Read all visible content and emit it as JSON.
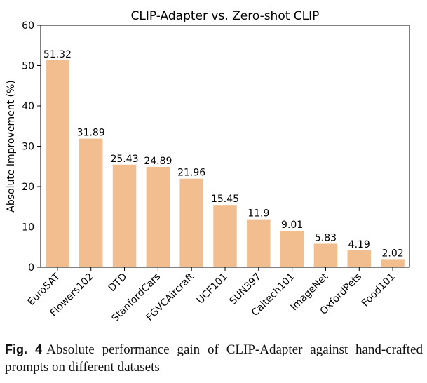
{
  "chart_data": {
    "type": "bar",
    "title": "CLIP-Adapter vs. Zero-shot CLIP",
    "xlabel": "",
    "ylabel": "Absolute Improvement (%)",
    "ylim": [
      0,
      60
    ],
    "yticks": [
      0,
      10,
      20,
      30,
      40,
      50,
      60
    ],
    "categories": [
      "EuroSAT",
      "Flowers102",
      "DTD",
      "StanfordCars",
      "FGVCAircraft",
      "UCF101",
      "SUN397",
      "Caltech101",
      "ImageNet",
      "OxfordPets",
      "Food101"
    ],
    "values": [
      51.32,
      31.89,
      25.43,
      24.89,
      21.96,
      15.45,
      11.9,
      9.01,
      5.83,
      4.19,
      2.02
    ],
    "value_labels": [
      "51.32",
      "31.89",
      "25.43",
      "24.89",
      "21.96",
      "15.45",
      "11.9",
      "9.01",
      "5.83",
      "4.19",
      "2.02"
    ],
    "bar_color": "#f2be90",
    "grid": false,
    "legend": "none"
  },
  "caption": {
    "label": "Fig. 4",
    "text": "Absolute performance gain of CLIP-Adapter against hand-crafted prompts on different datasets"
  }
}
